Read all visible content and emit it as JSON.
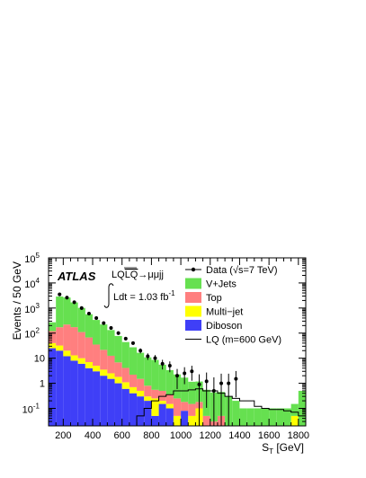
{
  "chart_data": {
    "type": "bar",
    "stacked": true,
    "log_y": true,
    "xlabel": "S_T [GeV]",
    "ylabel": "Events / 50 GeV",
    "xlim": [
      100,
      1850
    ],
    "ylim": [
      0.02,
      100000
    ],
    "x_ticks": [
      200,
      400,
      600,
      800,
      1000,
      1200,
      1400,
      1600,
      1800
    ],
    "y_ticks": [
      {
        "value": 0.1,
        "base": "10",
        "exp": "-1"
      },
      {
        "value": 1,
        "label": "1"
      },
      {
        "value": 10,
        "label": "10"
      },
      {
        "value": 100,
        "base": "10",
        "exp": "2"
      },
      {
        "value": 1000,
        "base": "10",
        "exp": "3"
      },
      {
        "value": 10000,
        "base": "10",
        "exp": "4"
      },
      {
        "value": 100000,
        "base": "10",
        "exp": "5"
      }
    ],
    "bin_edges": [
      100,
      150,
      200,
      250,
      300,
      350,
      400,
      450,
      500,
      550,
      600,
      650,
      700,
      750,
      800,
      850,
      900,
      950,
      1000,
      1050,
      1100,
      1150,
      1200,
      1250,
      1300,
      1350,
      1400,
      1450,
      1500,
      1550,
      1600,
      1650,
      1700,
      1750,
      1800,
      1850
    ],
    "series": [
      {
        "name": "Diboson",
        "color": "#3f3ff7",
        "values": [
          25,
          20,
          12,
          8,
          6,
          4,
          3,
          2,
          1.5,
          1,
          0.6,
          0.4,
          0.3,
          0.2,
          0.05,
          0.15,
          0.1,
          0,
          0.08,
          0,
          0,
          0,
          0,
          0,
          0,
          0,
          0,
          0,
          0,
          0,
          0,
          0,
          0,
          0,
          0
        ]
      },
      {
        "name": "Multi−jet",
        "color": "#ffff00",
        "values": [
          15,
          12,
          8,
          5,
          4,
          3,
          2,
          1.5,
          1,
          0.8,
          0.5,
          0.3,
          0.2,
          0.1,
          0.2,
          0.05,
          0.05,
          0.05,
          0,
          0.05,
          0.1,
          0,
          0,
          0.02,
          0,
          0,
          0,
          0,
          0,
          0,
          0,
          0,
          0,
          0.05,
          0
        ]
      },
      {
        "name": "Top",
        "color": "#ff7f7f",
        "values": [
          80,
          140,
          200,
          160,
          100,
          60,
          30,
          18,
          10,
          5,
          3,
          1.5,
          1,
          0.5,
          0.3,
          0.3,
          0.2,
          0.2,
          0.1,
          0.1,
          0.08,
          0.05,
          0.03,
          0.03,
          0,
          0,
          0,
          0,
          0,
          0,
          0,
          0,
          0,
          0,
          0
        ]
      },
      {
        "name": "V+Jets",
        "color": "#66e050",
        "values": [
          150,
          2700,
          2400,
          1500,
          900,
          500,
          300,
          200,
          120,
          70,
          40,
          25,
          15,
          10,
          8,
          5,
          3,
          2,
          1.5,
          1,
          1,
          0.5,
          0.4,
          0.4,
          0.3,
          0.2,
          0.1,
          0.1,
          0.1,
          0.1,
          0.1,
          0.1,
          0.1,
          0.1,
          0.5
        ]
      }
    ],
    "data_points": {
      "name": "Data (√s=7 TeV)",
      "x": [
        175,
        225,
        275,
        325,
        375,
        425,
        475,
        525,
        575,
        625,
        675,
        725,
        775,
        825,
        875,
        925,
        975,
        1025,
        1075,
        1125,
        1175,
        1225,
        1275,
        1325,
        1375
      ],
      "y": [
        3500,
        2600,
        1700,
        1000,
        600,
        400,
        250,
        160,
        100,
        60,
        40,
        20,
        12,
        10,
        6,
        5,
        2,
        2.5,
        3,
        0.9,
        1.2,
        0.5,
        1,
        1,
        1.5
      ]
    },
    "lq_signal": {
      "name": "LQ (m=600 GeV)",
      "values": [
        0,
        0,
        0,
        0,
        0,
        0,
        0,
        0,
        0,
        0,
        0,
        0.02,
        0.05,
        0.1,
        0.2,
        0.3,
        0.35,
        0.5,
        0.5,
        0.55,
        0.6,
        0.5,
        0.5,
        0.4,
        0.3,
        0.25,
        0.2,
        0.2,
        0.12,
        0.1,
        0.09,
        0.09,
        0.08,
        0.07,
        0.05
      ]
    },
    "annotations": {
      "atlas": "ATLAS",
      "process": "LQLQ→μμjj",
      "lumi": "Ldt = 1.03 fb",
      "lumi_sup": "-1"
    },
    "legend_position": "top-right",
    "legend": [
      {
        "label": "Data (√s=7 TeV)",
        "style": "marker"
      },
      {
        "label": "V+Jets",
        "style": "box",
        "color": "#66e050"
      },
      {
        "label": "Top",
        "style": "box",
        "color": "#ff7f7f"
      },
      {
        "label": "Multi−jet",
        "style": "box",
        "color": "#ffff00"
      },
      {
        "label": "Diboson",
        "style": "box",
        "color": "#3f3ff7"
      },
      {
        "label": "LQ (m=600 GeV)",
        "style": "line"
      }
    ]
  }
}
